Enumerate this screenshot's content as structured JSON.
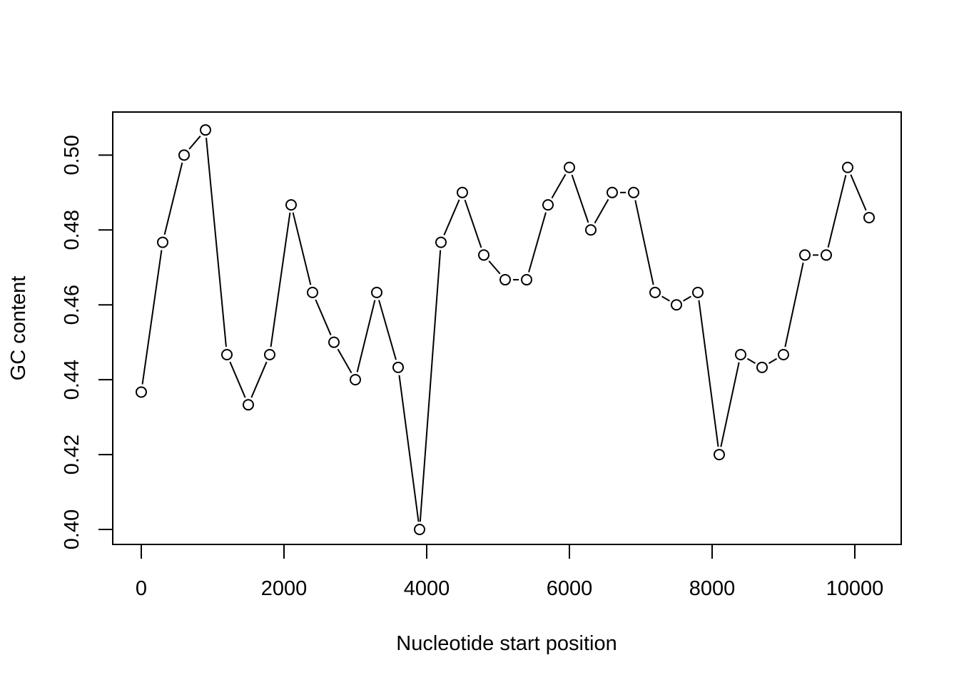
{
  "chart_data": {
    "type": "line",
    "title": "",
    "xlabel": "Nucleotide start position",
    "ylabel": "GC content",
    "xlim": [
      -400,
      10650
    ],
    "ylim": [
      0.396,
      0.5115
    ],
    "xticks": [
      0,
      2000,
      4000,
      6000,
      8000,
      10000
    ],
    "xtick_labels": [
      "0",
      "2000",
      "4000",
      "6000",
      "8000",
      "10000"
    ],
    "yticks": [
      0.4,
      0.42,
      0.44,
      0.46,
      0.48,
      0.5
    ],
    "ytick_labels": [
      "0.40",
      "0.42",
      "0.44",
      "0.46",
      "0.48",
      "0.50"
    ],
    "grid": false,
    "marker": "open-circle",
    "line_color": "#000000",
    "series": [
      {
        "x": [
          0,
          300,
          600,
          900,
          1200,
          1500,
          1800,
          2100,
          2400,
          2700,
          3000,
          3300,
          3600,
          3900,
          4200,
          4500,
          4800,
          5100,
          5400,
          5700,
          6000,
          6300,
          6600,
          6900,
          7200,
          7500,
          7800,
          8100,
          8400,
          8700,
          9000,
          9300,
          9600,
          9900,
          10200
        ],
        "values": [
          0.4367,
          0.4767,
          0.5,
          0.5067,
          0.4467,
          0.4333,
          0.4467,
          0.4867,
          0.4633,
          0.45,
          0.44,
          0.4633,
          0.4433,
          0.4,
          0.4767,
          0.49,
          0.4733,
          0.4667,
          0.4667,
          0.4867,
          0.4967,
          0.48,
          0.49,
          0.49,
          0.4633,
          0.46,
          0.4633,
          0.42,
          0.4467,
          0.4433,
          0.4467,
          0.4733,
          0.4733,
          0.4967,
          0.4833
        ]
      }
    ]
  }
}
